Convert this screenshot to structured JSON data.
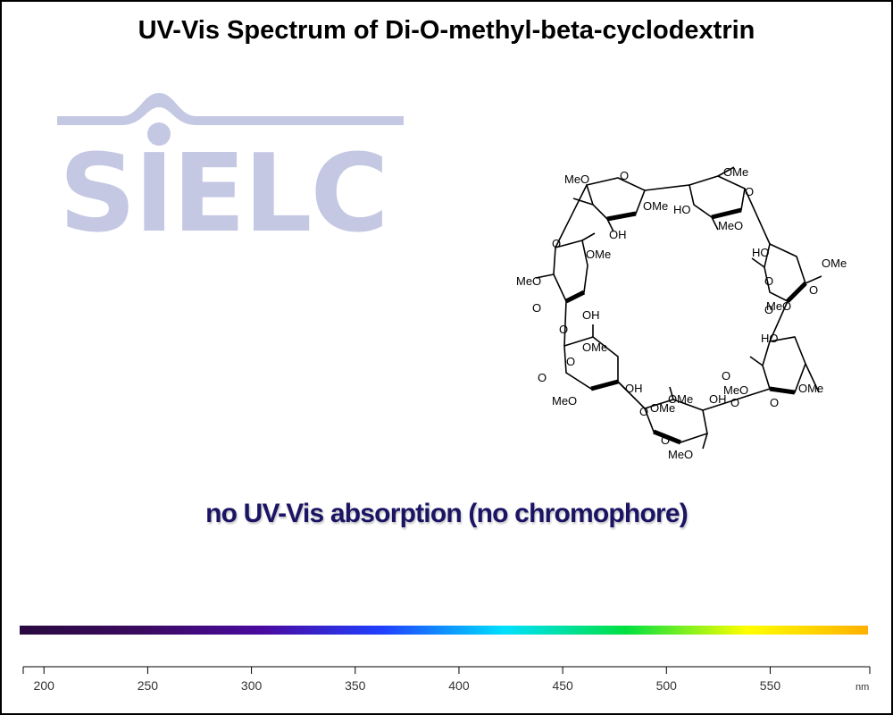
{
  "chart_data": {
    "type": "line",
    "title": "UV-Vis Spectrum of Di-O-methyl-beta-cyclodextrin",
    "annotation": "no UV-Vis absorption (no chromophore)",
    "xlabel": "nm",
    "ylabel": "",
    "xlim": [
      190,
      598
    ],
    "x_ticks": [
      200,
      250,
      300,
      350,
      400,
      450,
      500,
      550
    ],
    "series": [],
    "color_bar": true,
    "grid": false,
    "legend": "none"
  },
  "logo": {
    "text": "SIELC"
  },
  "molecule": {
    "labels": [
      "MeO",
      "O",
      "OMe",
      "HO",
      "OMe",
      "O",
      "OH",
      "MeO",
      "O",
      "HO",
      "OMe",
      "O",
      "OMe",
      "MeO",
      "O",
      "OH",
      "MeO",
      "O",
      "HO",
      "O",
      "O",
      "OMe",
      "MeO",
      "O",
      "OMe",
      "OH",
      "O",
      "OMe",
      "OH",
      "MeO",
      "O",
      "O",
      "MeO",
      "OMe",
      "O",
      "O",
      "O"
    ]
  },
  "colors": {
    "logo": "#c4c8e3",
    "message": "#1b1464",
    "spectrum_stops": [
      "#2a0a40",
      "#3a0a60",
      "#4a0aa0",
      "#2040ff",
      "#00e0ff",
      "#00e040",
      "#ffff00",
      "#ffb000"
    ]
  }
}
